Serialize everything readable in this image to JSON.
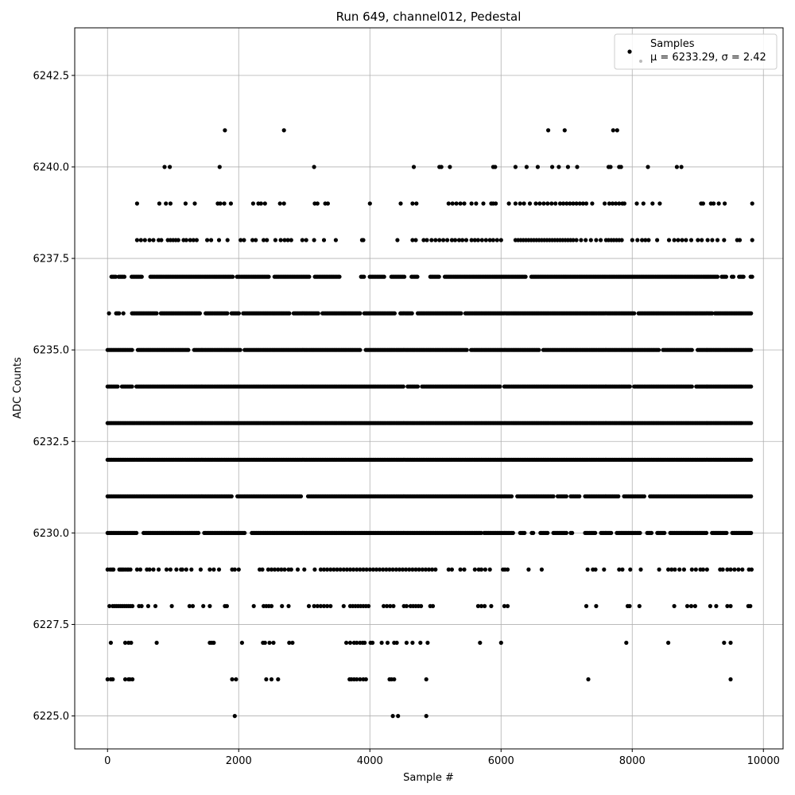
{
  "chart_data": {
    "type": "scatter",
    "title": "Run 649, channel012, Pedestal",
    "xlabel": "Sample #",
    "ylabel": "ADC Counts",
    "xlim": [
      -500,
      10300
    ],
    "ylim": [
      6224.1,
      6243.8
    ],
    "x_ticks": [
      0,
      2000,
      4000,
      6000,
      8000,
      10000
    ],
    "x_tick_labels": [
      "0",
      "2000",
      "4000",
      "6000",
      "8000",
      "10000"
    ],
    "y_ticks": [
      6225.0,
      6227.5,
      6230.0,
      6232.5,
      6235.0,
      6237.5,
      6240.0,
      6242.5
    ],
    "y_tick_labels": [
      "6225.0",
      "6227.5",
      "6230.0",
      "6232.5",
      "6235.0",
      "6237.5",
      "6240.0",
      "6242.5"
    ],
    "grid": true,
    "legend_position": "top-right",
    "series": [
      {
        "name": "Samples",
        "color": "#000000",
        "x_range": [
          0,
          9830
        ],
        "levels": [
          {
            "y": 6225,
            "x": [
              1940,
              4350,
              4430,
              4860
            ]
          },
          {
            "y": 6226,
            "x": [
              0,
              50,
              80,
              270,
              320,
              340,
              380,
              1900,
              1960,
              2420,
              2500,
              2600,
              3690,
              3720,
              3760,
              3800,
              3850,
              3900,
              3940,
              4300,
              4330,
              4370,
              4860,
              7330,
              9500
            ]
          },
          {
            "y": 6227,
            "x": [
              50,
              270,
              320,
              360,
              750,
              1560,
              1590,
              1620,
              2050,
              2370,
              2400,
              2470,
              2530,
              2770,
              2820,
              3640,
              3700,
              3760,
              3800,
              3850,
              3890,
              3920,
              4010,
              4040,
              4180,
              4270,
              4370,
              4410,
              4560,
              4650,
              4770,
              4880,
              5680,
              6000,
              7910,
              8550,
              9400,
              9500
            ]
          },
          {
            "y": 6228,
            "x": [
              30,
              80,
              110,
              140,
              170,
              200,
              230,
              260,
              290,
              320,
              350,
              380,
              480,
              520,
              620,
              730,
              980,
              1250,
              1300,
              1460,
              1560,
              1790,
              1820,
              2230,
              2380,
              2420,
              2460,
              2500,
              2660,
              2760,
              3070,
              3150,
              3200,
              3250,
              3300,
              3350,
              3400,
              3600,
              3700,
              3740,
              3780,
              3820,
              3860,
              3900,
              3940,
              3980,
              4210,
              4260,
              4310,
              4360,
              4520,
              4560,
              4620,
              4660,
              4700,
              4740,
              4780,
              4920,
              4960,
              5650,
              5700,
              5750,
              5850,
              6050,
              6100,
              7300,
              7450,
              7930,
              7960,
              8110,
              8640,
              8840,
              8900,
              8960,
              9190,
              9280,
              9450,
              9500,
              9770,
              9800
            ]
          },
          {
            "y": 6229,
            "x": [
              0,
              40,
              70,
              90,
              180,
              200,
              220,
              240,
              270,
              300,
              320,
              350,
              450,
              500,
              600,
              640,
              700,
              780,
              900,
              960,
              1050,
              1120,
              1140,
              1200,
              1280,
              1420,
              1560,
              1620,
              1700,
              1900,
              1940,
              2000,
              2320,
              2360,
              2450,
              2500,
              2550,
              2600,
              2650,
              2700,
              2760,
              2800,
              2900,
              3000,
              3160,
              3250,
              3300,
              3350,
              3400,
              3450,
              3500,
              3550,
              3600,
              3650,
              3700,
              3750,
              3800,
              3850,
              3900,
              3950,
              4000,
              4050,
              4100,
              4150,
              4200,
              4250,
              4300,
              4350,
              4400,
              4450,
              4500,
              4550,
              4600,
              4650,
              4700,
              4750,
              4800,
              4850,
              4900,
              4950,
              5000,
              5200,
              5250,
              5380,
              5440,
              5600,
              5660,
              5700,
              5760,
              5830,
              6030,
              6060,
              6100,
              6420,
              6620,
              7320,
              7400,
              7440,
              7570,
              7800,
              7850,
              7970,
              8130,
              8410,
              8550,
              8600,
              8650,
              8720,
              8790,
              8910,
              8970,
              9040,
              9080,
              9140,
              9340,
              9380,
              9450,
              9500,
              9560,
              9620,
              9680,
              9780,
              9820
            ]
          },
          {
            "y": 6238,
            "x": [
              450,
              510,
              570,
              640,
              700,
              780,
              820,
              920,
              960,
              1000,
              1040,
              1080,
              1160,
              1200,
              1260,
              1310,
              1360,
              1520,
              1580,
              1700,
              1830,
              2030,
              2080,
              2210,
              2260,
              2380,
              2430,
              2560,
              2640,
              2700,
              2750,
              2800,
              2970,
              3030,
              3150,
              3300,
              3480,
              3880,
              3900,
              4420,
              4650,
              4700,
              4820,
              4870,
              4940,
              5000,
              5060,
              5120,
              5180,
              5250,
              5300,
              5360,
              5410,
              5470,
              5550,
              5600,
              5650,
              5710,
              5770,
              5830,
              5880,
              5940,
              6000,
              6220,
              6260,
              6300,
              6340,
              6380,
              6420,
              6460,
              6500,
              6540,
              6580,
              6620,
              6660,
              6700,
              6740,
              6780,
              6820,
              6860,
              6900,
              6940,
              6980,
              7020,
              7060,
              7100,
              7150,
              7220,
              7290,
              7370,
              7450,
              7520,
              7600,
              7640,
              7680,
              7720,
              7760,
              7800,
              7840,
              8000,
              8080,
              8150,
              8200,
              8250,
              8380,
              8560,
              8640,
              8700,
              8760,
              8820,
              8900,
              9000,
              9060,
              9150,
              9220,
              9300,
              9400,
              9600,
              9640,
              9830
            ]
          },
          {
            "y": 6239,
            "x": [
              450,
              790,
              890,
              960,
              1190,
              1330,
              1680,
              1720,
              1780,
              1880,
              2220,
              2300,
              2340,
              2400,
              2630,
              2690,
              3160,
              3200,
              3320,
              3360,
              4000,
              4470,
              4650,
              4710,
              5200,
              5260,
              5320,
              5380,
              5440,
              5550,
              5620,
              5730,
              5850,
              5880,
              5920,
              6120,
              6220,
              6290,
              6350,
              6440,
              6530,
              6590,
              6650,
              6710,
              6770,
              6830,
              6900,
              6950,
              7000,
              7050,
              7100,
              7150,
              7200,
              7250,
              7300,
              7390,
              7580,
              7650,
              7700,
              7750,
              7800,
              7850,
              7880,
              8070,
              8170,
              8310,
              8420,
              9050,
              9080,
              9200,
              9240,
              9320,
              9410,
              9830
            ]
          },
          {
            "y": 6240,
            "x": [
              870,
              950,
              1710,
              3150,
              4670,
              5060,
              5090,
              5220,
              5880,
              5910,
              6220,
              6390,
              6560,
              6780,
              6880,
              7020,
              7160,
              7640,
              7670,
              7800,
              7830,
              8240,
              8680,
              8750
            ]
          },
          {
            "y": 6241,
            "x": [
              1790,
              2690,
              6720,
              6970,
              7710,
              7770
            ]
          }
        ],
        "dense_levels": [
          {
            "y": 6230,
            "x_range": [
              0,
              9830
            ],
            "gaps": [
              [
                460,
                540
              ],
              [
                1400,
                1460
              ],
              [
                2100,
                2180
              ],
              [
                5700,
                5740
              ],
              [
                6200,
                6280
              ],
              [
                6380,
                6460
              ],
              [
                6500,
                6580
              ],
              [
                6720,
                6780
              ],
              [
                7000,
                7060
              ],
              [
                7100,
                7260
              ],
              [
                7440,
                7520
              ],
              [
                7680,
                7760
              ],
              [
                8120,
                8220
              ],
              [
                8300,
                8360
              ],
              [
                8500,
                8560
              ],
              [
                9150,
                9210
              ],
              [
                9460,
                9520
              ]
            ]
          },
          {
            "y": 6231,
            "x_range": [
              0,
              9830
            ],
            "gaps": [
              [
                1900,
                1960
              ],
              [
                2960,
                3040
              ],
              [
                6180,
                6240
              ],
              [
                6800,
                6860
              ],
              [
                7000,
                7060
              ],
              [
                7200,
                7260
              ],
              [
                7800,
                7860
              ],
              [
                8200,
                8260
              ]
            ]
          },
          {
            "y": 6232,
            "x_range": [
              0,
              9830
            ],
            "gaps": []
          },
          {
            "y": 6233,
            "x_range": [
              0,
              9830
            ],
            "gaps": []
          },
          {
            "y": 6234,
            "x_range": [
              0,
              9830
            ],
            "gaps": [
              [
                160,
                200
              ],
              [
                380,
                420
              ],
              [
                4520,
                4560
              ],
              [
                4740,
                4780
              ],
              [
                6000,
                6040
              ],
              [
                7980,
                8020
              ],
              [
                8920,
                8960
              ]
            ]
          },
          {
            "y": 6235,
            "x_range": [
              0,
              9830
            ],
            "gaps": [
              [
                380,
                440
              ],
              [
                1240,
                1300
              ],
              [
                2040,
                2080
              ],
              [
                3860,
                3920
              ],
              [
                5500,
                5540
              ],
              [
                6600,
                6640
              ],
              [
                8420,
                8460
              ],
              [
                8920,
                8980
              ]
            ]
          },
          {
            "y": 6236,
            "x_range": [
              0,
              9830
            ],
            "gaps": [
              [
                0,
                20
              ],
              [
                40,
                120
              ],
              [
                180,
                240
              ],
              [
                260,
                360
              ],
              [
                760,
                800
              ],
              [
                1420,
                1480
              ],
              [
                1840,
                1880
              ],
              [
                2020,
                2060
              ],
              [
                2780,
                2820
              ],
              [
                3220,
                3260
              ],
              [
                3860,
                3900
              ],
              [
                4400,
                4460
              ],
              [
                4660,
                4720
              ],
              [
                5400,
                5440
              ],
              [
                8040,
                8080
              ],
              [
                9220,
                9260
              ]
            ]
          },
          {
            "y": 6237,
            "x_range": [
              60,
              9830
            ],
            "gaps": [
              [
                130,
                160
              ],
              [
                260,
                360
              ],
              [
                540,
                640
              ],
              [
                1920,
                1970
              ],
              [
                2480,
                2540
              ],
              [
                3080,
                3160
              ],
              [
                3540,
                3860
              ],
              [
                3920,
                3990
              ],
              [
                4220,
                4320
              ],
              [
                4530,
                4620
              ],
              [
                4730,
                4900
              ],
              [
                5060,
                5140
              ],
              [
                6380,
                6440
              ],
              [
                9320,
                9360
              ],
              [
                9450,
                9500
              ],
              [
                9560,
                9620
              ],
              [
                9700,
                9800
              ]
            ]
          }
        ]
      }
    ],
    "legend": {
      "entries": [
        {
          "label": "Samples"
        },
        {
          "label": "μ = 6233.29, σ = 2.42"
        }
      ]
    }
  }
}
